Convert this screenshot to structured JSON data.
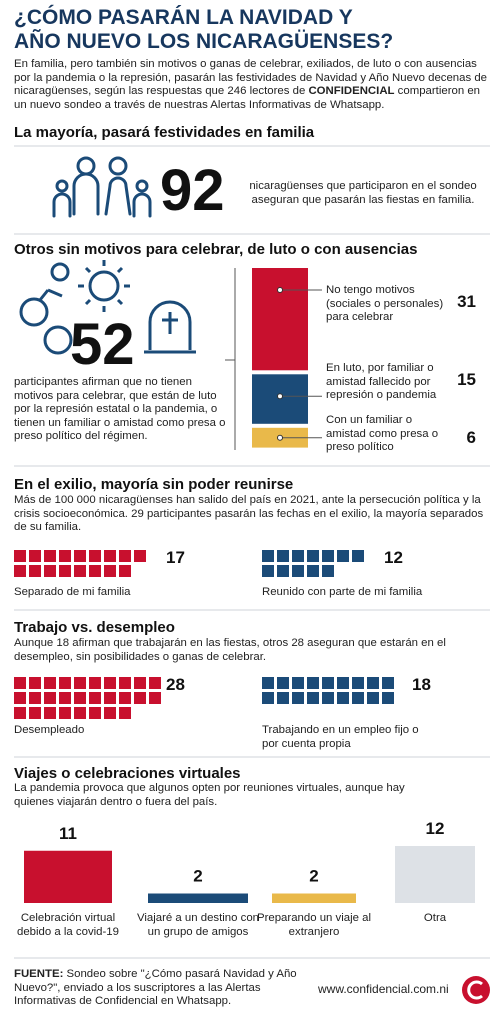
{
  "header": {
    "title": [
      "¿CÓMO PASARÁN LA NAVIDAD Y",
      "AÑO NUEVO LOS NICARAGÜENSES?"
    ],
    "intro": [
      "En familia, pero también sin motivos o ganas de celebrar, exiliados, de luto o con ausencias por la pandemia o la represión, pasarán las festividades de Navidad y Año Nuevo decenas de nicaragüenses, según las respuestas que 246 lectores de ",
      "CONFIDENCIAL",
      " compartieron en un nuevo sondeo a través de nuestras Alertas Informativas de Whatsapp."
    ]
  },
  "family": {
    "heading": "La mayoría, pasará festividades en familia",
    "value": 92,
    "text": "nicaragüenses que participaron en el sondeo aseguran que pasarán las fiestas en familia."
  },
  "without_reasons": {
    "heading": "Otros sin motivos para celebrar, de luto o con ausencias",
    "value": 52,
    "text": "participantes afirman que no tienen motivos para celebrar, que están de luto por la represión estatal o la pandemia, o tienen un familiar o amistad como presa o preso político del régimen.",
    "chart": {
      "type": "stacked-bar",
      "categories": [
        "No tengo motivos (sociales o personales) para celebrar",
        "En luto, por familiar o amistad fallecido por represión o pandemia",
        "Con un familiar o amistad como presa o preso político"
      ],
      "values": [
        31,
        15,
        6
      ],
      "colors": [
        "#c8102e",
        "#1b4b78",
        "#e9b94a"
      ]
    }
  },
  "exile": {
    "heading": "En el exilio, mayoría sin poder reunirse",
    "text": "Más de 100 000 nicaragüenses han salido del país en 2021, ante la persecución política y la crisis socioeconómica. 29 participantes pasarán las fechas en el exilio, la mayoría separados de su familia.",
    "chart": {
      "type": "waffle",
      "categories": [
        "Separado de mi familia",
        "Reunido con parte de mi familia"
      ],
      "values": [
        17,
        12
      ],
      "colors": [
        "#c8102e",
        "#1b4b78"
      ]
    }
  },
  "work": {
    "heading": "Trabajo vs. desempleo",
    "text": "Aunque 18 afirman que trabajarán en las fiestas, otros 28 aseguran que estarán en el desempleo, sin posibilidades o ganas de celebrar.",
    "chart": {
      "type": "waffle",
      "categories": [
        "Desempleado",
        "Trabajando en un empleo fijo o por cuenta propia"
      ],
      "values": [
        28,
        18
      ],
      "colors": [
        "#c8102e",
        "#1b4b78"
      ]
    }
  },
  "virtual": {
    "heading": "Viajes o celebraciones virtuales",
    "text": "La pandemia provoca que algunos opten por reuniones virtuales, aunque hay quienes viajarán dentro o fuera del país.",
    "chart": {
      "type": "bar",
      "categories": [
        "Celebración virtual debido a la covid-19",
        "Viajaré a un destino con un grupo de amigos",
        "Preparando un viaje al extranjero",
        "Otra"
      ],
      "values": [
        11,
        2,
        2,
        12
      ],
      "colors": [
        "#c8102e",
        "#1b4b78",
        "#e9b94a",
        "#dde1e6"
      ]
    }
  },
  "footer": {
    "source_label": "FUENTE:",
    "source": " Sondeo sobre \"¿Cómo pasará Navidad y Año Nuevo?\", enviado a los suscriptores a las Alertas Informativas de Confidencial en Whatsapp.",
    "website": "www.confidencial.com.ni"
  }
}
